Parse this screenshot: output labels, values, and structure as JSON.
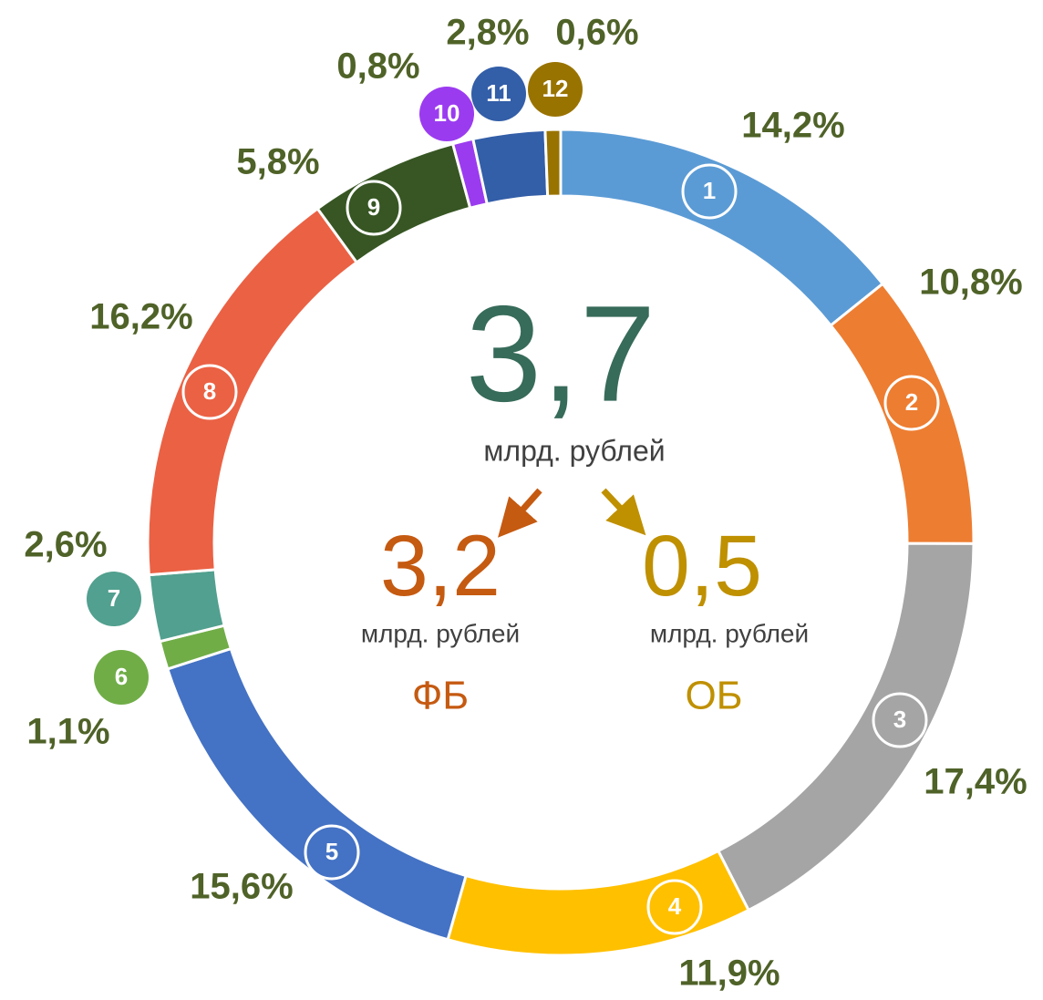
{
  "chart_data": {
    "type": "donut",
    "categories": [
      "1",
      "2",
      "3",
      "4",
      "5",
      "6",
      "7",
      "8",
      "9",
      "10",
      "11",
      "12"
    ],
    "values": [
      14.2,
      10.8,
      17.4,
      11.9,
      15.6,
      1.1,
      2.6,
      16.2,
      5.8,
      0.8,
      2.8,
      0.6
    ],
    "value_labels": [
      "14,2%",
      "10,8%",
      "17,4%",
      "11,9%",
      "15,6%",
      "1,1%",
      "2,6%",
      "16,2%",
      "5,8%",
      "0,8%",
      "2,8%",
      "0,6%"
    ],
    "colors": [
      "#5b9bd5",
      "#ed7d31",
      "#a5a5a5",
      "#ffc000",
      "#4472c4",
      "#70ad47",
      "#52a08f",
      "#eb6144",
      "#375623",
      "#9b3bf0",
      "#335ea8",
      "#997300"
    ],
    "total": {
      "value": "3,7",
      "unit": "млрд. рублей"
    },
    "parts": [
      {
        "value": "3,2",
        "unit": "млрд. рублей",
        "name": "ФБ",
        "color": "#c55a11"
      },
      {
        "value": "0,5",
        "unit": "млрд. рублей",
        "name": "ОБ",
        "color": "#bf9000"
      }
    ]
  }
}
